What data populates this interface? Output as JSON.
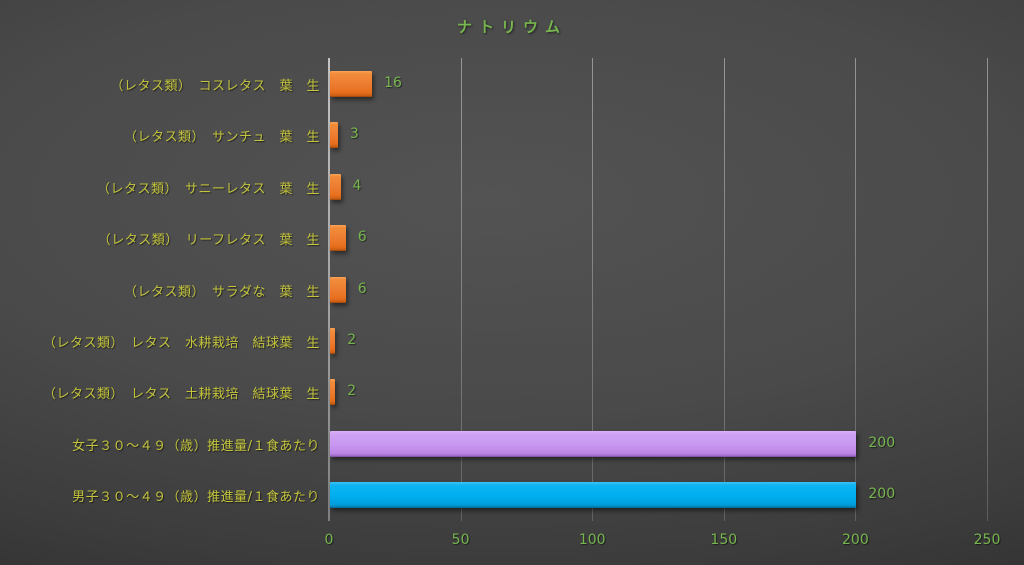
{
  "title": "ナトリウム",
  "colors": {
    "title_text": "#77b64e",
    "category_label_text": "#c4c53d",
    "value_label_text": "#77b64e",
    "tick_label_text": "#77b64e",
    "bar_orange": "#ed7d31",
    "bar_purple": "#c897f1",
    "bar_blue": "#00aeef",
    "gridline": "#a8a8a8",
    "background_center": "#4f4f4f",
    "background_edge": "#272727"
  },
  "chart_data": {
    "type": "bar",
    "orientation": "horizontal",
    "title": "ナトリウム",
    "categories": [
      "（レタス類）　コスレタス　葉　生",
      "（レタス類）　サンチュ　葉　生",
      "（レタス類）　サニーレタス　葉　生",
      "（レタス類）　リーフレタス　葉　生",
      "（レタス類）　サラダな　葉　生",
      "（レタス類）　レタス　水耕栽培　結球葉　生",
      "（レタス類）　レタス　土耕栽培　結球葉　生",
      "女子３０～４９（歳）推進量/１食あたり",
      "男子３０～４９（歳）推進量/１食あたり"
    ],
    "values": [
      16,
      3,
      4,
      6,
      6,
      2,
      2,
      200,
      200
    ],
    "value_labels": [
      "16",
      "3",
      "4",
      "6",
      "6",
      "2",
      "2",
      "200",
      "200"
    ],
    "bar_colors": [
      "orange",
      "orange",
      "orange",
      "orange",
      "orange",
      "orange",
      "orange",
      "purple",
      "blue"
    ],
    "xlabel": "",
    "ylabel": "",
    "xlim": [
      0,
      250
    ],
    "xticks": [
      0,
      50,
      100,
      150,
      200,
      250
    ],
    "xtick_labels": [
      "0",
      "50",
      "100",
      "150",
      "200",
      "250"
    ],
    "grid": true,
    "legend": "none",
    "data_labels": true
  }
}
